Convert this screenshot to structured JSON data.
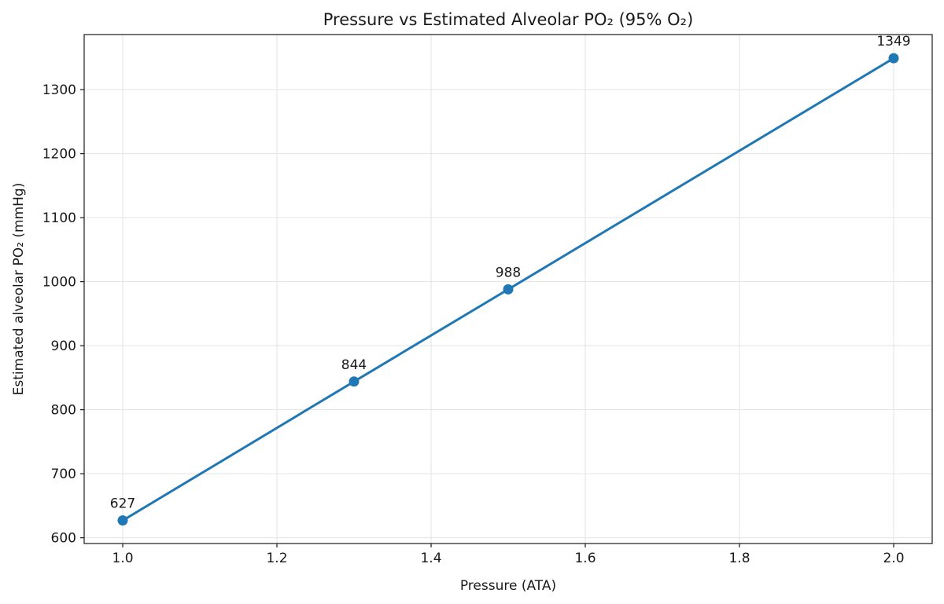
{
  "chart_data": {
    "type": "line",
    "title": "Pressure vs Estimated Alveolar PO₂ (95% O₂)",
    "xlabel": "Pressure (ATA)",
    "ylabel": "Estimated alveolar PO₂ (mmHg)",
    "x": [
      1.0,
      1.3,
      1.5,
      2.0
    ],
    "series": [
      {
        "values": [
          627,
          844,
          988,
          1349
        ],
        "color": "#1f77b4",
        "data_labels": [
          "627",
          "844",
          "988",
          "1349"
        ]
      }
    ],
    "xlim": [
      0.95,
      2.05
    ],
    "ylim": [
      591,
      1386
    ],
    "xticks": [
      1.0,
      1.2,
      1.4,
      1.6,
      1.8,
      2.0
    ],
    "xtick_labels": [
      "1.0",
      "1.2",
      "1.4",
      "1.6",
      "1.8",
      "2.0"
    ],
    "yticks": [
      600,
      700,
      800,
      900,
      1000,
      1100,
      1200,
      1300
    ],
    "ytick_labels": [
      "600",
      "700",
      "800",
      "900",
      "1000",
      "1100",
      "1200",
      "1300"
    ],
    "grid": true,
    "legend": "none"
  }
}
